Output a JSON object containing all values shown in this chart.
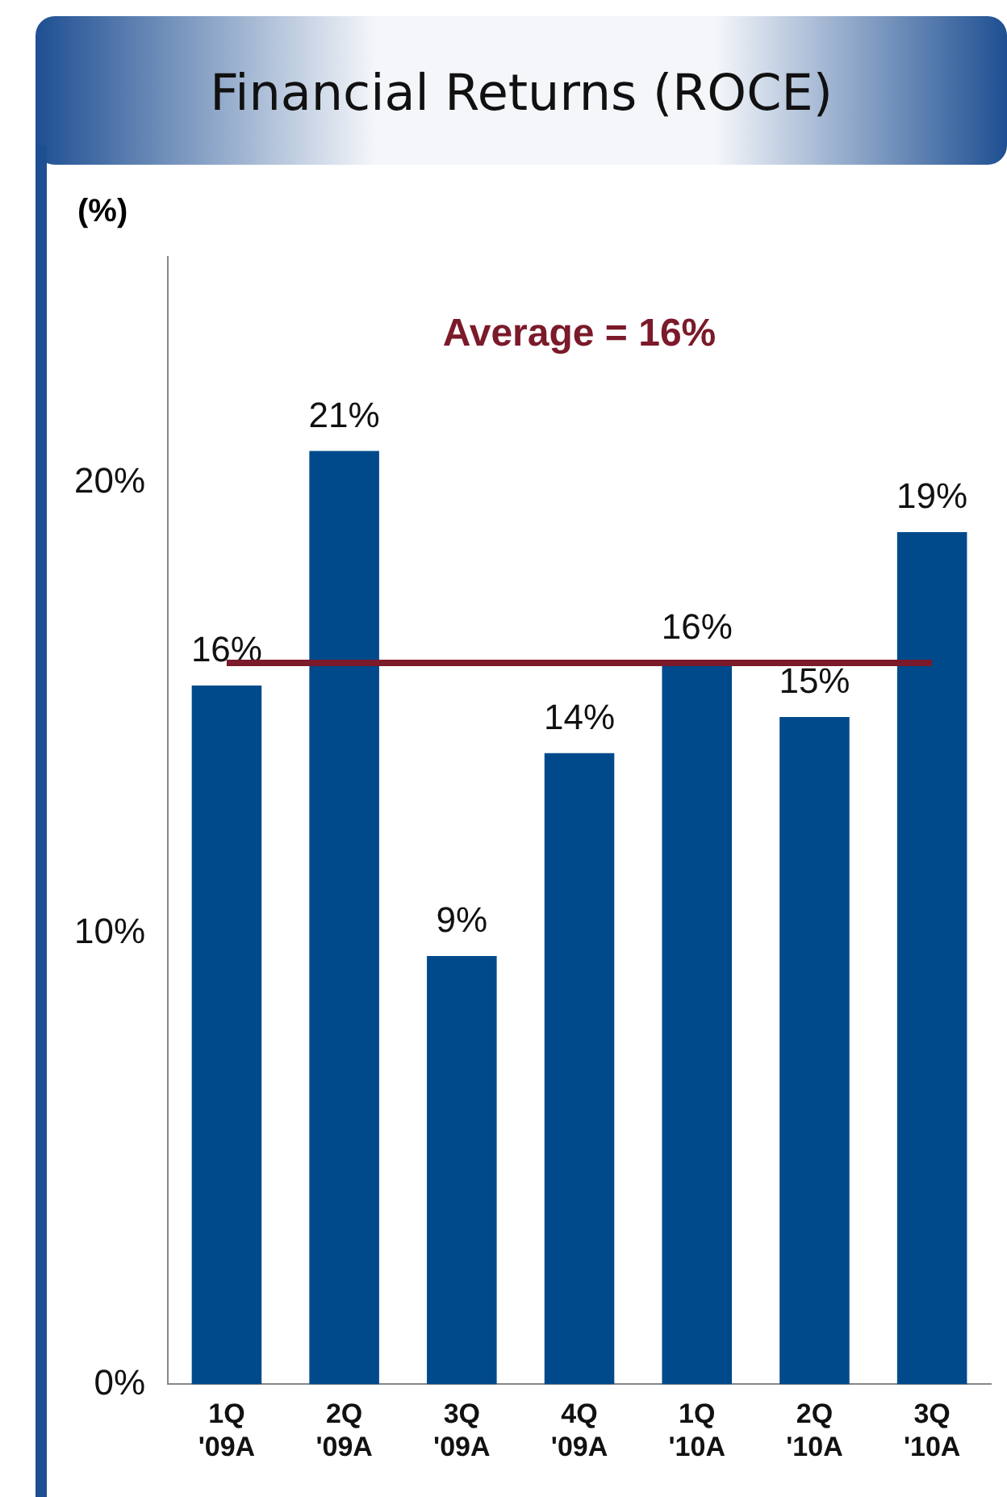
{
  "chart_data": {
    "type": "bar",
    "title": "Financial Returns (ROCE)",
    "ylabel": "(%)",
    "categories": [
      "1Q '09A",
      "2Q '09A",
      "3Q '09A",
      "4Q '09A",
      "1Q '10A",
      "2Q '10A",
      "3Q '10A"
    ],
    "values": [
      15.5,
      20.7,
      9.5,
      14.0,
      16.0,
      14.8,
      18.9
    ],
    "value_labels": [
      "16%",
      "21%",
      "9%",
      "14%",
      "16%",
      "15%",
      "19%"
    ],
    "color": "#004a8c",
    "ylim": [
      0,
      25
    ],
    "yticks": [
      {
        "value": 0,
        "label": "0%"
      },
      {
        "value": 10,
        "label": "10%"
      },
      {
        "value": 20,
        "label": "20%"
      }
    ],
    "ref_lines": [
      {
        "axis": "y",
        "value": 16,
        "label": "Average = 16%",
        "color": "#7b1a2a"
      }
    ],
    "grid": false,
    "legend": false
  }
}
